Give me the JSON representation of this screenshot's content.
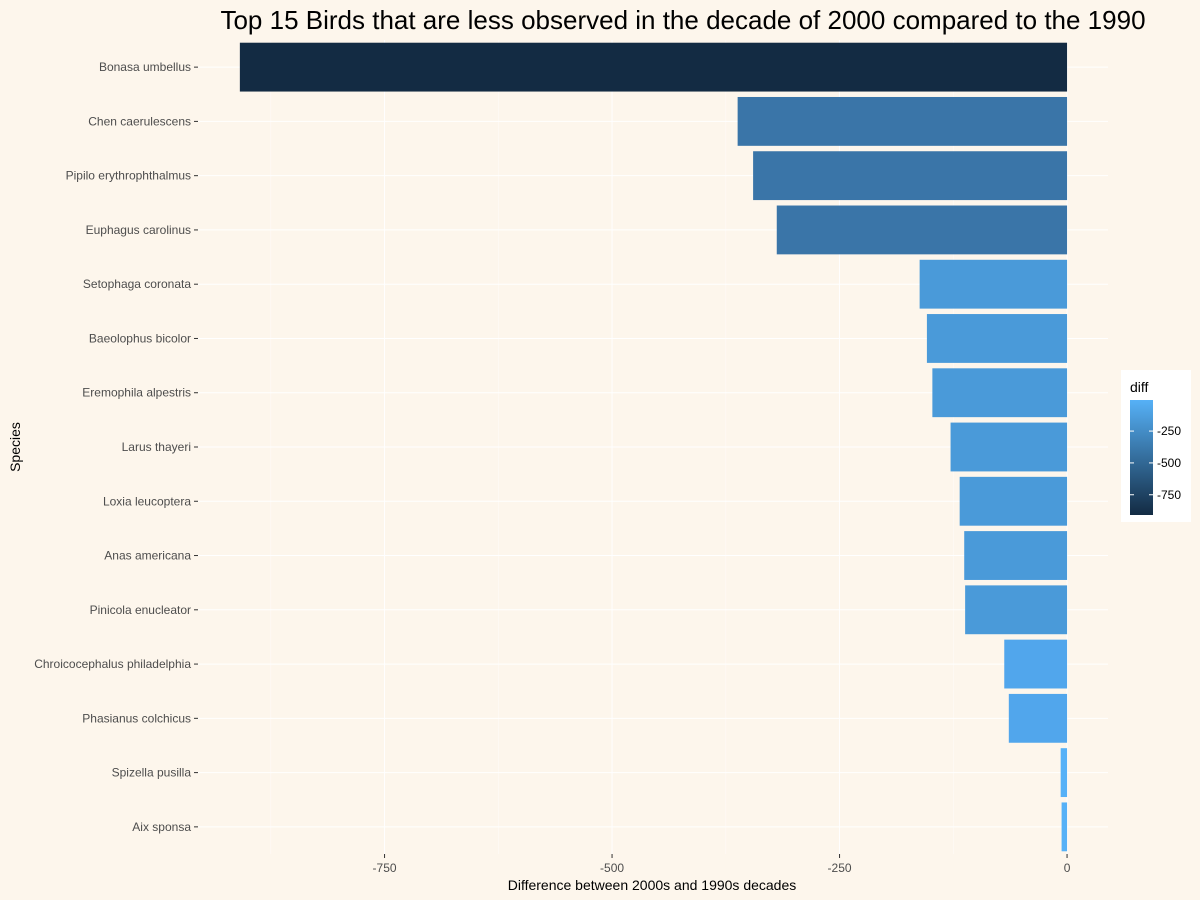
{
  "chart_data": {
    "type": "bar",
    "orientation": "horizontal",
    "title": "Top 15 Birds that are less observed in the decade of 2000 compared to the 1990",
    "xlabel": "Difference between 2000s and 1990s decades",
    "ylabel": "Species",
    "categories": [
      "Bonasa umbellus",
      "Chen caerulescens",
      "Pipilo erythrophthalmus",
      "Euphagus carolinus",
      "Setophaga coronata",
      "Baeolophus bicolor",
      "Eremophila alpestris",
      "Larus thayeri",
      "Loxia leucoptera",
      "Anas americana",
      "Pinicola enucleator",
      "Chroicocephalus philadelphia",
      "Phasianus colchicus",
      "Spizella pusilla",
      "Aix sponsa"
    ],
    "values": [
      -909,
      -362,
      -345,
      -319,
      -162,
      -154,
      -148,
      -128,
      -118,
      -113,
      -112,
      -69,
      -64,
      -7,
      -6
    ],
    "colors": [
      "#132b43",
      "#3a75a8",
      "#3a75a8",
      "#3a75a8",
      "#4a9ad9",
      "#4a9ad9",
      "#4a9ad9",
      "#4a9ad9",
      "#4a9ad9",
      "#4a9ad9",
      "#4a9ad9",
      "#51a6ec",
      "#51a6ec",
      "#56b1f7",
      "#56b1f7"
    ],
    "xlim": [
      -955,
      45
    ],
    "xticks": [
      -750,
      -500,
      -250,
      0
    ],
    "xtick_labels": [
      "-750",
      "-500",
      "-250",
      "0"
    ],
    "grid": true,
    "legend": {
      "title": "diff",
      "placement": "right",
      "labels": [
        "-250",
        "-500",
        "-750"
      ],
      "label_values": [
        -250,
        -500,
        -750
      ],
      "range": [
        -909,
        -6
      ],
      "color_low": "#132b43",
      "color_high": "#56b1f7"
    }
  }
}
